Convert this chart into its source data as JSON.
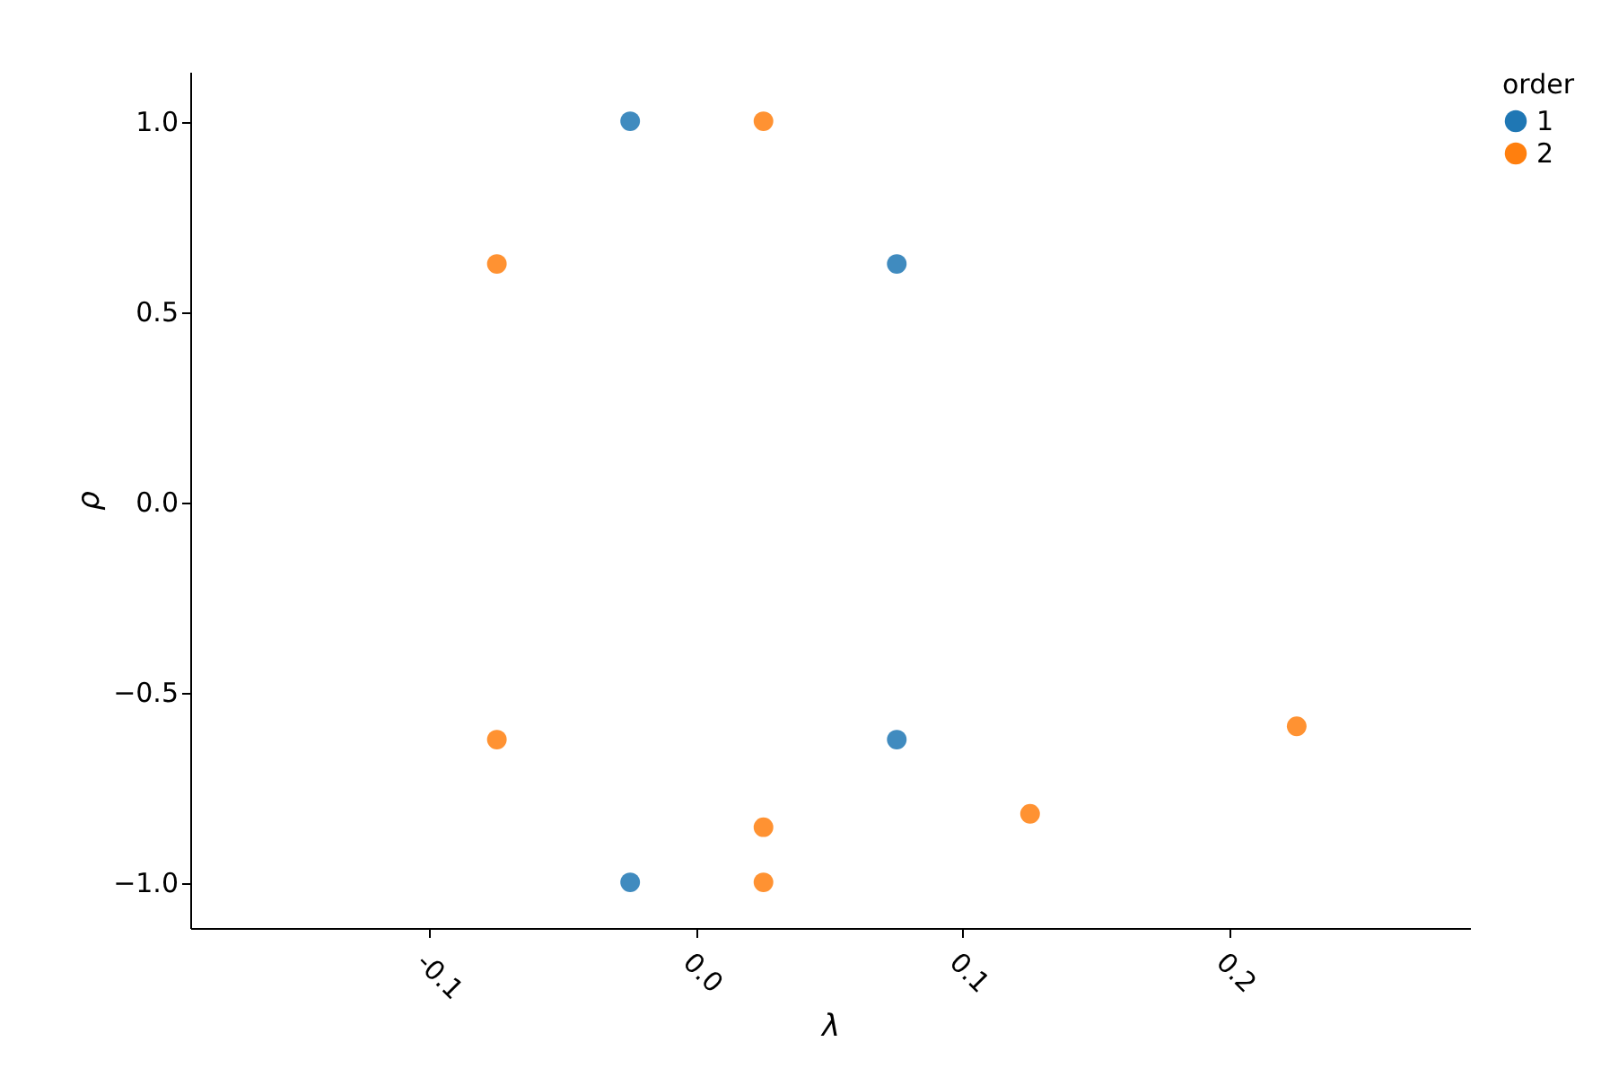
{
  "chart_data": {
    "type": "scatter",
    "xlabel": "λ",
    "ylabel": "ρ",
    "legend_title": "order",
    "legend": "right",
    "grid": false,
    "marker": "circle",
    "categories": [
      "-0.1",
      "0.0",
      "0.1",
      "0.2"
    ],
    "ylim": [
      -1.12,
      1.13
    ],
    "yticks": [
      {
        "value": -1.0,
        "label": "−1.0"
      },
      {
        "value": -0.5,
        "label": "−0.5"
      },
      {
        "value": 0.0,
        "label": "0.0"
      },
      {
        "value": 0.5,
        "label": "0.5"
      },
      {
        "value": 1.0,
        "label": "1.0"
      }
    ],
    "series": [
      {
        "name": "1",
        "color": "#1f77b4",
        "x": [
          "0.0",
          "0.0",
          "0.1",
          "0.1"
        ],
        "values": [
          1.0,
          -1.0,
          0.625,
          -0.625
        ]
      },
      {
        "name": "2",
        "color": "#ff7f0e",
        "x": [
          "-0.1",
          "-0.1",
          "0.0",
          "0.0",
          "0.0",
          "0.1",
          "0.2"
        ],
        "values": [
          0.625,
          -0.625,
          1.0,
          -0.855,
          -1.0,
          -0.82,
          -0.59
        ]
      }
    ]
  }
}
